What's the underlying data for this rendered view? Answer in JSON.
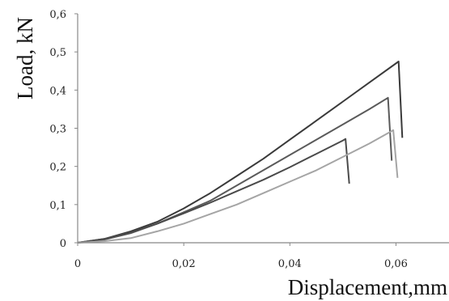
{
  "chart_data": {
    "type": "line",
    "title": "",
    "xlabel": "Displacement,mm",
    "ylabel": "Load, kN",
    "xlim": [
      0,
      0.07
    ],
    "ylim": [
      0,
      0.6
    ],
    "x_ticks": [
      {
        "value": 0,
        "label": "0"
      },
      {
        "value": 0.02,
        "label": "0,02"
      },
      {
        "value": 0.04,
        "label": "0,04"
      },
      {
        "value": 0.06,
        "label": "0,06"
      }
    ],
    "y_ticks": [
      {
        "value": 0,
        "label": "0"
      },
      {
        "value": 0.1,
        "label": "0,1"
      },
      {
        "value": 0.2,
        "label": "0,2"
      },
      {
        "value": 0.3,
        "label": "0,3"
      },
      {
        "value": 0.4,
        "label": "0,4"
      },
      {
        "value": 0.5,
        "label": "0,5"
      },
      {
        "value": 0.6,
        "label": "0,6"
      }
    ],
    "grid": false,
    "legend": "none",
    "series": [
      {
        "color": "#3a3a3a",
        "x": [
          0,
          0.005,
          0.01,
          0.015,
          0.02,
          0.025,
          0.03,
          0.035,
          0.04,
          0.045,
          0.05,
          0.055,
          0.0605,
          0.0612
        ],
        "y": [
          0,
          0.01,
          0.03,
          0.055,
          0.09,
          0.13,
          0.175,
          0.22,
          0.27,
          0.32,
          0.37,
          0.42,
          0.475,
          0.275
        ]
      },
      {
        "color": "#5a5a5a",
        "x": [
          0,
          0.005,
          0.01,
          0.015,
          0.02,
          0.025,
          0.03,
          0.035,
          0.04,
          0.045,
          0.05,
          0.055,
          0.0585,
          0.0592
        ],
        "y": [
          0,
          0.008,
          0.025,
          0.05,
          0.08,
          0.11,
          0.15,
          0.19,
          0.23,
          0.27,
          0.31,
          0.35,
          0.38,
          0.215
        ]
      },
      {
        "color": "#4a4a4a",
        "x": [
          0,
          0.005,
          0.01,
          0.015,
          0.02,
          0.025,
          0.03,
          0.035,
          0.04,
          0.045,
          0.05,
          0.0505,
          0.0512
        ],
        "y": [
          0,
          0.01,
          0.027,
          0.05,
          0.077,
          0.105,
          0.135,
          0.165,
          0.198,
          0.233,
          0.268,
          0.272,
          0.155
        ]
      },
      {
        "color": "#a5a5a5",
        "x": [
          0,
          0.005,
          0.01,
          0.015,
          0.02,
          0.025,
          0.03,
          0.035,
          0.04,
          0.045,
          0.05,
          0.055,
          0.0595,
          0.0603
        ],
        "y": [
          0,
          0.004,
          0.012,
          0.03,
          0.05,
          0.075,
          0.1,
          0.13,
          0.16,
          0.19,
          0.225,
          0.26,
          0.295,
          0.17
        ]
      }
    ]
  }
}
